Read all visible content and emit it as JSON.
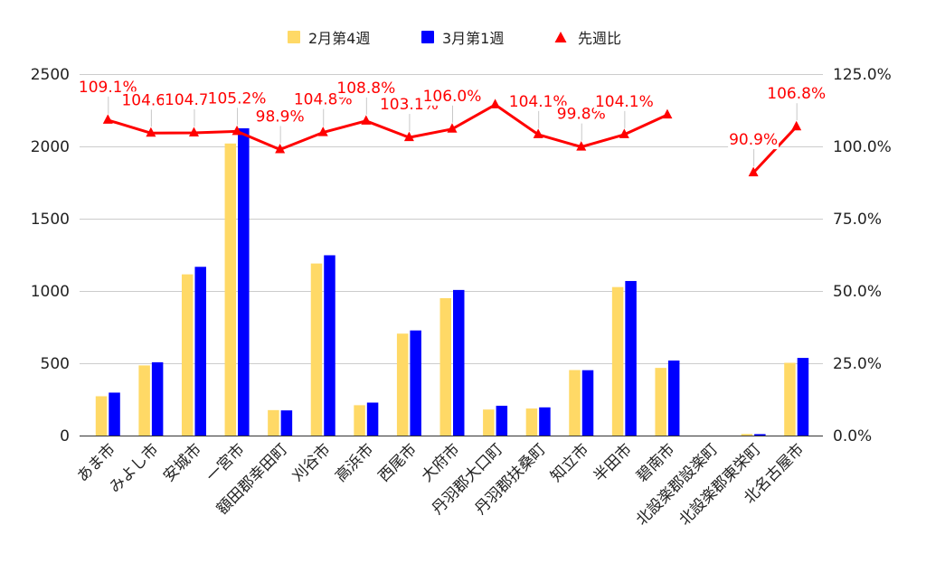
{
  "chart_data": {
    "type": "bar",
    "categories": [
      "あま市",
      "みよし市",
      "安城市",
      "一宮市",
      "額田郡幸田町",
      "刈谷市",
      "高浜市",
      "西尾市",
      "大府市",
      "丹羽郡大口町",
      "丹羽郡扶桑町",
      "知立市",
      "半田市",
      "碧南市",
      "北設楽郡設楽町",
      "北設楽郡東栄町",
      "北名古屋市"
    ],
    "series": [
      {
        "name": "2月第4週",
        "type": "bar",
        "axis": "left",
        "color": "#FFD966",
        "values": [
          272,
          485,
          1115,
          2020,
          176,
          1190,
          210,
          705,
          950,
          180,
          187,
          453,
          1027,
          468,
          0,
          11,
          503
        ]
      },
      {
        "name": "3月第1週",
        "type": "bar",
        "axis": "left",
        "color": "#0000FF",
        "values": [
          297,
          507,
          1167,
          2125,
          174,
          1247,
          228,
          727,
          1007,
          206,
          195,
          452,
          1069,
          519,
          0,
          10,
          537
        ]
      },
      {
        "name": "先週比",
        "type": "line",
        "axis": "right",
        "color": "#FF0000",
        "marker": "triangle",
        "values": [
          109.1,
          104.6,
          104.7,
          105.2,
          98.9,
          104.8,
          108.8,
          103.1,
          106.0,
          114.4,
          104.1,
          99.8,
          104.1,
          110.9,
          null,
          90.9,
          106.8
        ],
        "data_labels": [
          "109.1%",
          "104.6%",
          "104.7%",
          "105.2%",
          "98.9%",
          "104.8%",
          "108.8%",
          "103.1%",
          "106.0%",
          null,
          "104.1%",
          "99.8%",
          "104.1%",
          null,
          null,
          "90.9%",
          "106.8%"
        ]
      }
    ],
    "y_left": {
      "range": [
        0,
        2500
      ],
      "ticks": [
        0,
        500,
        1000,
        1500,
        2000,
        2500
      ],
      "tick_labels": [
        "0",
        "500",
        "1000",
        "1500",
        "2000",
        "2500"
      ]
    },
    "y_right": {
      "range": [
        0,
        125
      ],
      "ticks": [
        0,
        25,
        50,
        75,
        100,
        125
      ],
      "tick_labels": [
        "0.0%",
        "25.0%",
        "50.0%",
        "75.0%",
        "100.0%",
        "125.0%"
      ]
    },
    "legend_position": "top",
    "grid": true
  }
}
